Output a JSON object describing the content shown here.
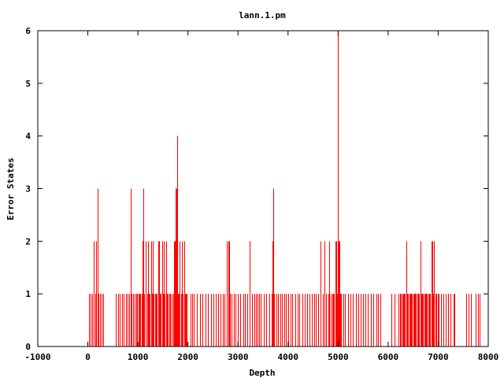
{
  "chart_data": {
    "type": "bar",
    "title": "lann.1.pm",
    "xlabel": "Depth",
    "ylabel": "Error States",
    "xlim": [
      -1000,
      8000
    ],
    "ylim": [
      0,
      6
    ],
    "xticks": [
      -1000,
      0,
      1000,
      2000,
      3000,
      4000,
      5000,
      6000,
      7000,
      8000
    ],
    "yticks": [
      0,
      1,
      2,
      3,
      4,
      5,
      6
    ],
    "grid": false,
    "legend": "none",
    "color": "#ff0000",
    "points": [
      [
        30,
        1
      ],
      [
        60,
        1
      ],
      [
        90,
        1
      ],
      [
        120,
        2
      ],
      [
        150,
        1
      ],
      [
        170,
        2
      ],
      [
        190,
        3
      ],
      [
        210,
        1
      ],
      [
        240,
        1
      ],
      [
        270,
        1
      ],
      [
        300,
        1
      ],
      [
        550,
        1
      ],
      [
        600,
        1
      ],
      [
        630,
        1
      ],
      [
        680,
        1
      ],
      [
        720,
        1
      ],
      [
        760,
        1
      ],
      [
        800,
        1
      ],
      [
        830,
        1
      ],
      [
        860,
        3
      ],
      [
        880,
        1
      ],
      [
        900,
        1
      ],
      [
        930,
        1
      ],
      [
        960,
        1
      ],
      [
        990,
        1
      ],
      [
        1010,
        1
      ],
      [
        1030,
        1
      ],
      [
        1050,
        1
      ],
      [
        1070,
        1
      ],
      [
        1090,
        2
      ],
      [
        1100,
        2
      ],
      [
        1110,
        3
      ],
      [
        1130,
        1
      ],
      [
        1150,
        2
      ],
      [
        1160,
        1
      ],
      [
        1180,
        1
      ],
      [
        1200,
        2
      ],
      [
        1220,
        1
      ],
      [
        1240,
        1
      ],
      [
        1260,
        2
      ],
      [
        1280,
        1
      ],
      [
        1300,
        2
      ],
      [
        1320,
        1
      ],
      [
        1340,
        1
      ],
      [
        1360,
        1
      ],
      [
        1380,
        1
      ],
      [
        1400,
        2
      ],
      [
        1420,
        2
      ],
      [
        1440,
        1
      ],
      [
        1460,
        1
      ],
      [
        1480,
        2
      ],
      [
        1500,
        1
      ],
      [
        1520,
        2
      ],
      [
        1540,
        1
      ],
      [
        1560,
        2
      ],
      [
        1580,
        1
      ],
      [
        1600,
        1
      ],
      [
        1620,
        1
      ],
      [
        1640,
        1
      ],
      [
        1680,
        1
      ],
      [
        1700,
        1
      ],
      [
        1720,
        2
      ],
      [
        1740,
        2
      ],
      [
        1750,
        3
      ],
      [
        1760,
        2
      ],
      [
        1770,
        3
      ],
      [
        1780,
        4
      ],
      [
        1800,
        1
      ],
      [
        1820,
        1
      ],
      [
        1840,
        2
      ],
      [
        1860,
        1
      ],
      [
        1880,
        2
      ],
      [
        1900,
        1
      ],
      [
        1920,
        2
      ],
      [
        1940,
        1
      ],
      [
        1960,
        1
      ],
      [
        1980,
        1
      ],
      [
        2050,
        1
      ],
      [
        2080,
        1
      ],
      [
        2120,
        1
      ],
      [
        2180,
        1
      ],
      [
        2240,
        1
      ],
      [
        2290,
        1
      ],
      [
        2350,
        1
      ],
      [
        2400,
        1
      ],
      [
        2460,
        1
      ],
      [
        2510,
        1
      ],
      [
        2560,
        1
      ],
      [
        2600,
        1
      ],
      [
        2650,
        1
      ],
      [
        2700,
        1
      ],
      [
        2730,
        1
      ],
      [
        2780,
        2
      ],
      [
        2800,
        2
      ],
      [
        2820,
        2
      ],
      [
        2840,
        1
      ],
      [
        2870,
        1
      ],
      [
        2910,
        1
      ],
      [
        2950,
        1
      ],
      [
        2990,
        1
      ],
      [
        3050,
        1
      ],
      [
        3100,
        1
      ],
      [
        3140,
        1
      ],
      [
        3180,
        1
      ],
      [
        3230,
        2
      ],
      [
        3280,
        1
      ],
      [
        3330,
        1
      ],
      [
        3360,
        1
      ],
      [
        3390,
        1
      ],
      [
        3420,
        1
      ],
      [
        3460,
        1
      ],
      [
        3520,
        1
      ],
      [
        3560,
        1
      ],
      [
        3620,
        1
      ],
      [
        3670,
        1
      ],
      [
        3690,
        2
      ],
      [
        3700,
        2
      ],
      [
        3710,
        3
      ],
      [
        3720,
        1
      ],
      [
        3770,
        1
      ],
      [
        3800,
        1
      ],
      [
        3840,
        1
      ],
      [
        3880,
        1
      ],
      [
        3920,
        1
      ],
      [
        3960,
        1
      ],
      [
        4000,
        1
      ],
      [
        4050,
        1
      ],
      [
        4090,
        1
      ],
      [
        4140,
        1
      ],
      [
        4190,
        1
      ],
      [
        4230,
        1
      ],
      [
        4280,
        1
      ],
      [
        4330,
        1
      ],
      [
        4380,
        1
      ],
      [
        4430,
        1
      ],
      [
        4470,
        1
      ],
      [
        4520,
        1
      ],
      [
        4560,
        1
      ],
      [
        4600,
        1
      ],
      [
        4650,
        2
      ],
      [
        4700,
        1
      ],
      [
        4730,
        2
      ],
      [
        4760,
        1
      ],
      [
        4800,
        1
      ],
      [
        4820,
        2
      ],
      [
        4850,
        1
      ],
      [
        4880,
        1
      ],
      [
        4900,
        1
      ],
      [
        4920,
        1
      ],
      [
        4940,
        2
      ],
      [
        4960,
        2
      ],
      [
        4980,
        1
      ],
      [
        5000,
        6
      ],
      [
        5010,
        2
      ],
      [
        5020,
        2
      ],
      [
        5040,
        1
      ],
      [
        5060,
        1
      ],
      [
        5100,
        1
      ],
      [
        5140,
        1
      ],
      [
        5200,
        1
      ],
      [
        5250,
        1
      ],
      [
        5300,
        1
      ],
      [
        5350,
        1
      ],
      [
        5400,
        1
      ],
      [
        5450,
        1
      ],
      [
        5500,
        1
      ],
      [
        5550,
        1
      ],
      [
        5600,
        1
      ],
      [
        5650,
        1
      ],
      [
        5700,
        1
      ],
      [
        5760,
        1
      ],
      [
        5800,
        1
      ],
      [
        5840,
        1
      ],
      [
        6060,
        1
      ],
      [
        6130,
        1
      ],
      [
        6200,
        1
      ],
      [
        6240,
        1
      ],
      [
        6260,
        1
      ],
      [
        6280,
        1
      ],
      [
        6300,
        1
      ],
      [
        6320,
        1
      ],
      [
        6340,
        1
      ],
      [
        6360,
        2
      ],
      [
        6380,
        1
      ],
      [
        6400,
        1
      ],
      [
        6420,
        1
      ],
      [
        6440,
        1
      ],
      [
        6460,
        1
      ],
      [
        6480,
        1
      ],
      [
        6500,
        1
      ],
      [
        6520,
        1
      ],
      [
        6540,
        1
      ],
      [
        6560,
        1
      ],
      [
        6580,
        1
      ],
      [
        6600,
        1
      ],
      [
        6620,
        1
      ],
      [
        6640,
        2
      ],
      [
        6660,
        1
      ],
      [
        6680,
        1
      ],
      [
        6700,
        1
      ],
      [
        6720,
        1
      ],
      [
        6740,
        1
      ],
      [
        6760,
        1
      ],
      [
        6780,
        1
      ],
      [
        6800,
        1
      ],
      [
        6820,
        1
      ],
      [
        6840,
        1
      ],
      [
        6860,
        2
      ],
      [
        6880,
        2
      ],
      [
        6900,
        1
      ],
      [
        6920,
        2
      ],
      [
        6940,
        1
      ],
      [
        6960,
        1
      ],
      [
        6990,
        1
      ],
      [
        7010,
        1
      ],
      [
        7050,
        1
      ],
      [
        7100,
        1
      ],
      [
        7150,
        1
      ],
      [
        7200,
        1
      ],
      [
        7250,
        1
      ],
      [
        7300,
        1
      ],
      [
        7330,
        1
      ],
      [
        7560,
        1
      ],
      [
        7600,
        1
      ],
      [
        7650,
        1
      ],
      [
        7750,
        1
      ],
      [
        7790,
        1
      ],
      [
        7830,
        1
      ]
    ]
  }
}
